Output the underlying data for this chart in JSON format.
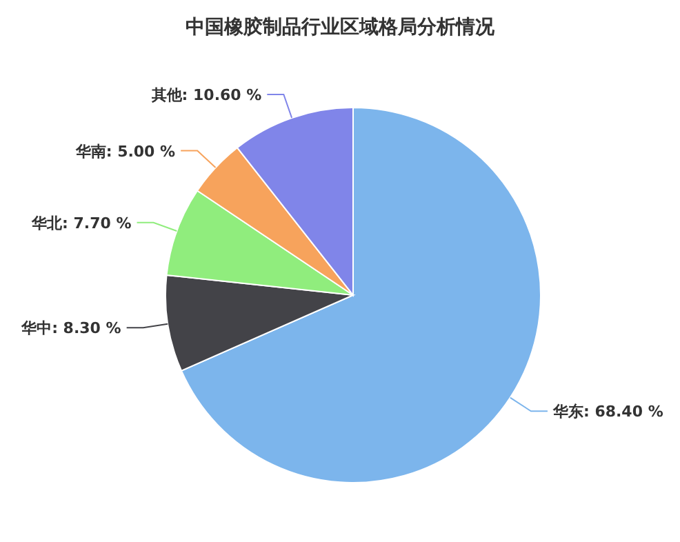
{
  "chart_data": {
    "type": "pie",
    "title": "中国橡胶制品行业区域格局分析情况",
    "categories": [
      "华东",
      "华中",
      "华北",
      "华南",
      "其他"
    ],
    "values": [
      68.4,
      8.3,
      7.7,
      5.0,
      10.6
    ],
    "colors": [
      "#7cb5ec",
      "#434348",
      "#90ed7d",
      "#f7a35c",
      "#8085e9"
    ],
    "value_labels": [
      "68.40 %",
      "8.30 %",
      "7.70 %",
      "5.00 %",
      "10.60 %"
    ]
  }
}
